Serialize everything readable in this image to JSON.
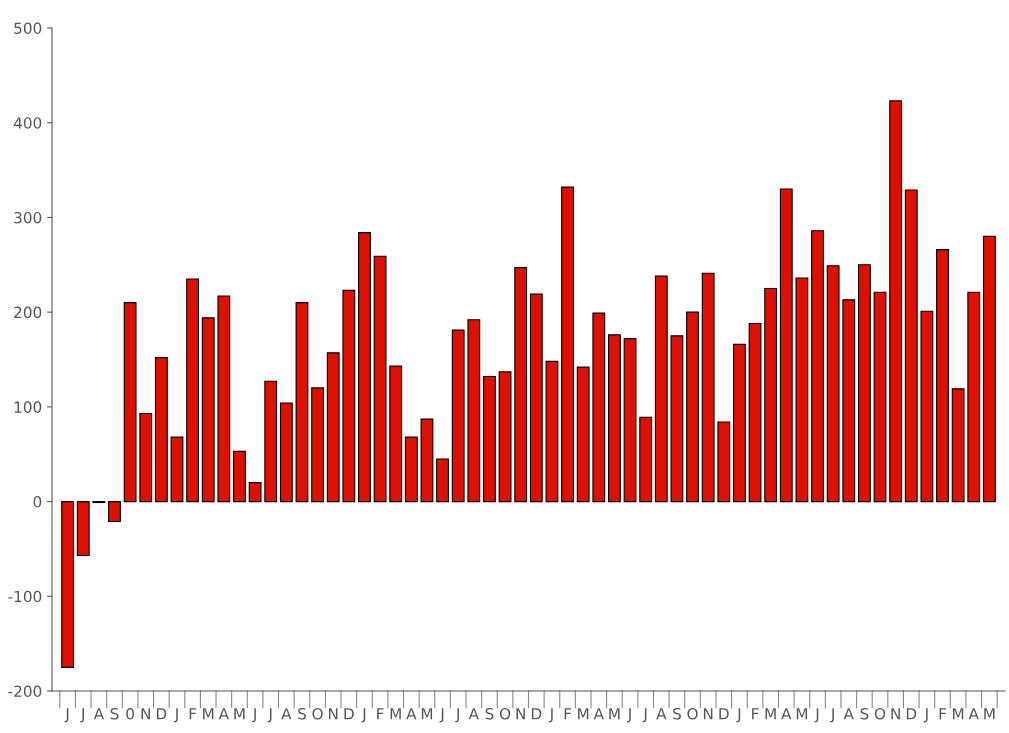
{
  "chart_data": {
    "type": "bar",
    "categories": [
      "J",
      "J",
      "A",
      "S",
      "0",
      "N",
      "D",
      "J",
      "F",
      "M",
      "A",
      "M",
      "J",
      "J",
      "A",
      "S",
      "O",
      "N",
      "D",
      "J",
      "F",
      "M",
      "A",
      "M",
      "J",
      "J",
      "A",
      "S",
      "O",
      "N",
      "D",
      "J",
      "F",
      "M",
      "A",
      "M",
      "J",
      "J",
      "A",
      "S",
      "O",
      "N",
      "D",
      "J",
      "F",
      "M",
      "A",
      "M",
      "J",
      "J",
      "A",
      "S",
      "O",
      "N",
      "D",
      "J",
      "F",
      "M",
      "A",
      "M"
    ],
    "values": [
      -175,
      -57,
      -1,
      -21,
      210,
      93,
      152,
      68,
      235,
      194,
      217,
      53,
      20,
      127,
      104,
      210,
      120,
      157,
      223,
      284,
      259,
      143,
      68,
      87,
      45,
      181,
      192,
      132,
      137,
      247,
      219,
      148,
      332,
      142,
      199,
      176,
      172,
      89,
      238,
      175,
      200,
      241,
      84,
      166,
      188,
      225,
      330,
      236,
      286,
      249,
      213,
      250,
      221,
      423,
      329,
      201,
      266,
      119,
      221,
      280
    ],
    "color": "#e01000",
    "ylim": [
      -200,
      500
    ],
    "yticks": [
      -200,
      -100,
      0,
      100,
      200,
      300,
      400,
      500
    ],
    "grid": false
  }
}
